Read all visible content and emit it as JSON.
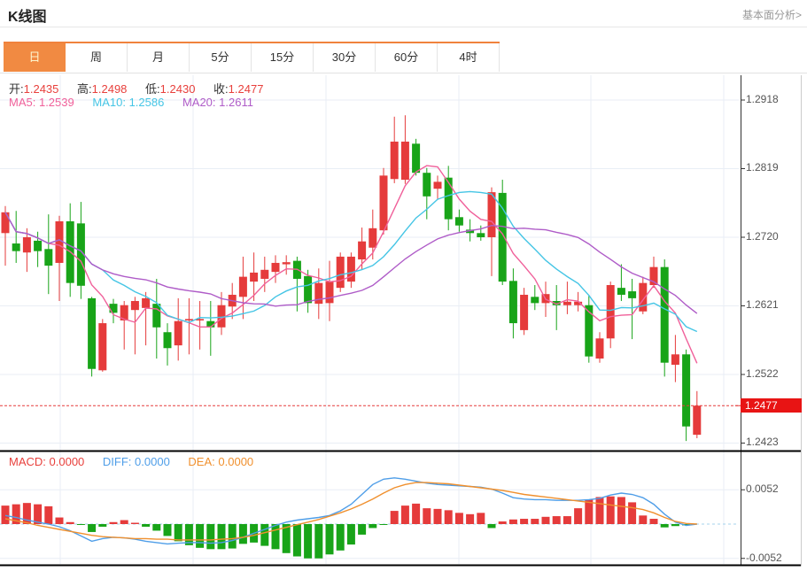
{
  "header": {
    "title": "K线图",
    "link": "基本面分析>"
  },
  "tabs": {
    "items": [
      "日",
      "周",
      "月",
      "5分",
      "15分",
      "30分",
      "60分",
      "4时"
    ],
    "selected_index": 0
  },
  "legend": {
    "ohlc": [
      {
        "label": "开:",
        "value": "1.2435"
      },
      {
        "label": "高:",
        "value": "1.2498"
      },
      {
        "label": "低:",
        "value": "1.2430"
      },
      {
        "label": "收:",
        "value": "1.2477"
      }
    ],
    "ma": [
      {
        "label": "MA5:",
        "value": "1.2539",
        "color": "#f0609a"
      },
      {
        "label": "MA10:",
        "value": "1.2586",
        "color": "#45c5e5"
      },
      {
        "label": "MA20:",
        "value": "1.2611",
        "color": "#af5cc8"
      }
    ],
    "macd": [
      {
        "label": "MACD:",
        "value": "0.0000",
        "color": "#e8403c"
      },
      {
        "label": "DIFF:",
        "value": "0.0000",
        "color": "#4f9ee8"
      },
      {
        "label": "DEA:",
        "value": "0.0000",
        "color": "#f0902e"
      }
    ]
  },
  "colors": {
    "up": "#e53b3b",
    "down": "#18a418",
    "ma5": "#f0609a",
    "ma10": "#45c5e5",
    "ma20": "#af5cc8",
    "diff": "#4f9ee8",
    "dea": "#f0902e",
    "macd_zero": "#a6d3ee",
    "price_line": "#e53b3b",
    "price_badge_bg": "#e81414",
    "price_badge_text": "#ffffff",
    "ohlc_value": "#e8403c",
    "grid": "#e9eef5",
    "axis_text": "#555555",
    "tab_selected_bg": "#f18a42",
    "tab_selected_text": "#fdf6cf"
  },
  "chart_data": {
    "type": "candlestick+macd",
    "title": "K线图 (日)",
    "price_axis_labels": [
      "1.2918",
      "1.2819",
      "1.2720",
      "1.2621",
      "1.2522",
      "1.2423"
    ],
    "current_price": "1.2477",
    "ma_periods": [
      5,
      10,
      20
    ],
    "candles_ohlc_format": [
      "open",
      "high",
      "low",
      "close"
    ],
    "candles": [
      [
        1.2726,
        1.2765,
        1.2679,
        1.2756
      ],
      [
        1.2711,
        1.2758,
        1.2683,
        1.27
      ],
      [
        1.2698,
        1.2733,
        1.267,
        1.272
      ],
      [
        1.2715,
        1.2728,
        1.2677,
        1.27
      ],
      [
        1.2703,
        1.2753,
        1.2638,
        1.2679
      ],
      [
        1.2683,
        1.2751,
        1.2628,
        1.2743
      ],
      [
        1.2743,
        1.2769,
        1.2634,
        1.2654
      ],
      [
        1.274,
        1.2771,
        1.2631,
        1.265
      ],
      [
        1.2632,
        1.2634,
        1.2519,
        1.253
      ],
      [
        1.2528,
        1.2602,
        1.2526,
        1.2596
      ],
      [
        1.2624,
        1.2631,
        1.2596,
        1.2611
      ],
      [
        1.26,
        1.2628,
        1.2558,
        1.2622
      ],
      [
        1.2615,
        1.2634,
        1.2551,
        1.2628
      ],
      [
        1.2618,
        1.2641,
        1.2564,
        1.2632
      ],
      [
        1.2624,
        1.266,
        1.2545,
        1.259
      ],
      [
        1.2583,
        1.2596,
        1.2535,
        1.256
      ],
      [
        1.2564,
        1.2632,
        1.2542,
        1.2599
      ],
      [
        1.26,
        1.2632,
        1.2551,
        1.2602
      ],
      [
        1.26,
        1.2628,
        1.2558,
        1.2602
      ],
      [
        1.2599,
        1.2628,
        1.2549,
        1.259
      ],
      [
        1.259,
        1.2641,
        1.2579,
        1.2622
      ],
      [
        1.262,
        1.2654,
        1.2602,
        1.2637
      ],
      [
        1.2634,
        1.2692,
        1.2602,
        1.2663
      ],
      [
        1.2656,
        1.2698,
        1.2628,
        1.2669
      ],
      [
        1.266,
        1.2692,
        1.2641,
        1.2673
      ],
      [
        1.267,
        1.2694,
        1.2654,
        1.2683
      ],
      [
        1.2681,
        1.2694,
        1.2666,
        1.2684
      ],
      [
        1.2686,
        1.2692,
        1.2613,
        1.266
      ],
      [
        1.2664,
        1.2673,
        1.2611,
        1.2625
      ],
      [
        1.2624,
        1.2675,
        1.2602,
        1.2654
      ],
      [
        1.2625,
        1.2686,
        1.2599,
        1.2656
      ],
      [
        1.2647,
        1.2698,
        1.2641,
        1.2692
      ],
      [
        1.2656,
        1.2698,
        1.2647,
        1.2692
      ],
      [
        1.2688,
        1.2734,
        1.2673,
        1.2714
      ],
      [
        1.2705,
        1.276,
        1.2688,
        1.2733
      ],
      [
        1.273,
        1.282,
        1.2724,
        1.2809
      ],
      [
        1.2804,
        1.2894,
        1.2798,
        1.2858
      ],
      [
        1.2803,
        1.2896,
        1.2797,
        1.2858
      ],
      [
        1.2855,
        1.2862,
        1.2809,
        1.2813
      ],
      [
        1.2813,
        1.282,
        1.2746,
        1.2779
      ],
      [
        1.279,
        1.2809,
        1.2775,
        1.28
      ],
      [
        1.2806,
        1.2823,
        1.273,
        1.2746
      ],
      [
        1.2749,
        1.276,
        1.2728,
        1.2737
      ],
      [
        1.2731,
        1.2746,
        1.2714,
        1.2726
      ],
      [
        1.2726,
        1.2737,
        1.2715,
        1.272
      ],
      [
        1.272,
        1.2792,
        1.2664,
        1.2785
      ],
      [
        1.2784,
        1.2803,
        1.2651,
        1.2656
      ],
      [
        1.2657,
        1.2675,
        1.2574,
        1.2596
      ],
      [
        1.2586,
        1.2647,
        1.2579,
        1.2637
      ],
      [
        1.2634,
        1.2651,
        1.2615,
        1.2625
      ],
      [
        1.2625,
        1.2656,
        1.2605,
        1.2638
      ],
      [
        1.2628,
        1.2651,
        1.2586,
        1.2622
      ],
      [
        1.2622,
        1.2656,
        1.2609,
        1.2627
      ],
      [
        1.2622,
        1.2641,
        1.2613,
        1.2627
      ],
      [
        1.2622,
        1.2637,
        1.2539,
        1.2548
      ],
      [
        1.2545,
        1.2583,
        1.2539,
        1.2574
      ],
      [
        1.2574,
        1.2656,
        1.256,
        1.2651
      ],
      [
        1.2647,
        1.2681,
        1.2628,
        1.2637
      ],
      [
        1.2642,
        1.266,
        1.2573,
        1.2632
      ],
      [
        1.2613,
        1.2663,
        1.2609,
        1.2654
      ],
      [
        1.2651,
        1.2692,
        1.2647,
        1.2677
      ],
      [
        1.2677,
        1.2688,
        1.2519,
        1.2539
      ],
      [
        1.2536,
        1.2579,
        1.2511,
        1.2551
      ],
      [
        1.2551,
        1.2558,
        1.2426,
        1.2447
      ],
      [
        1.2435,
        1.2498,
        1.243,
        1.2477
      ]
    ],
    "macd_axis_labels": [
      "0.0052",
      "-0.0052"
    ],
    "macd_histogram": [
      0.0028,
      0.003,
      0.0032,
      0.003,
      0.0027,
      0.001,
      0.0003,
      -0.0001,
      -0.0012,
      -0.0004,
      0.0003,
      0.0006,
      0.0002,
      -0.0004,
      -0.001,
      -0.0018,
      -0.0026,
      -0.0032,
      -0.0036,
      -0.0038,
      -0.0038,
      -0.0037,
      -0.003,
      -0.0028,
      -0.0033,
      -0.0038,
      -0.0044,
      -0.0049,
      -0.0052,
      -0.0052,
      -0.0046,
      -0.004,
      -0.0031,
      -0.0016,
      -0.0006,
      -0.0001,
      0.002,
      0.0028,
      0.0031,
      0.0024,
      0.0023,
      0.0021,
      0.0017,
      0.0015,
      0.0017,
      -0.0006,
      0.0004,
      0.0007,
      0.0008,
      0.0008,
      0.0011,
      0.0012,
      0.0012,
      0.0024,
      0.0037,
      0.0041,
      0.0042,
      0.0041,
      0.0033,
      0.0013,
      0.0008,
      -0.0005,
      -0.0003,
      -0.0002,
      0.0
    ],
    "diff_line": [
      0.0013,
      0.001,
      0.0006,
      0.0003,
      0.0,
      -0.0004,
      -0.001,
      -0.0018,
      -0.0026,
      -0.0022,
      -0.002,
      -0.0021,
      -0.0023,
      -0.0026,
      -0.0028,
      -0.003,
      -0.0029,
      -0.0028,
      -0.0028,
      -0.0029,
      -0.0028,
      -0.0025,
      -0.002,
      -0.0014,
      -0.0008,
      -0.0002,
      0.0003,
      0.0006,
      0.0008,
      0.001,
      0.0013,
      0.002,
      0.003,
      0.0045,
      0.006,
      0.0068,
      0.007,
      0.0068,
      0.0065,
      0.0062,
      0.006,
      0.0059,
      0.0058,
      0.0057,
      0.0056,
      0.0053,
      0.0047,
      0.004,
      0.0038,
      0.0037,
      0.0037,
      0.0036,
      0.0036,
      0.0036,
      0.0037,
      0.0039,
      0.0044,
      0.0047,
      0.0045,
      0.004,
      0.003,
      0.0015,
      0.0003,
      -0.0002,
      0.0
    ],
    "dea_line": [
      0.0008,
      0.0005,
      0.0002,
      -0.0002,
      -0.0005,
      -0.0008,
      -0.0011,
      -0.0014,
      -0.0017,
      -0.0019,
      -0.002,
      -0.0021,
      -0.0022,
      -0.0022,
      -0.0023,
      -0.0023,
      -0.0024,
      -0.0024,
      -0.0024,
      -0.0024,
      -0.0023,
      -0.0022,
      -0.002,
      -0.0017,
      -0.0013,
      -0.0009,
      -0.0005,
      -0.0001,
      0.0003,
      0.0007,
      0.0012,
      0.0017,
      0.0023,
      0.003,
      0.0038,
      0.0047,
      0.0055,
      0.006,
      0.0063,
      0.0063,
      0.0062,
      0.0061,
      0.0059,
      0.0057,
      0.0055,
      0.0053,
      0.0051,
      0.0048,
      0.0045,
      0.0043,
      0.0041,
      0.0039,
      0.0037,
      0.0035,
      0.0033,
      0.0031,
      0.0029,
      0.0027,
      0.0025,
      0.0022,
      0.0017,
      0.001,
      0.0004,
      0.0001,
      0.0
    ]
  }
}
